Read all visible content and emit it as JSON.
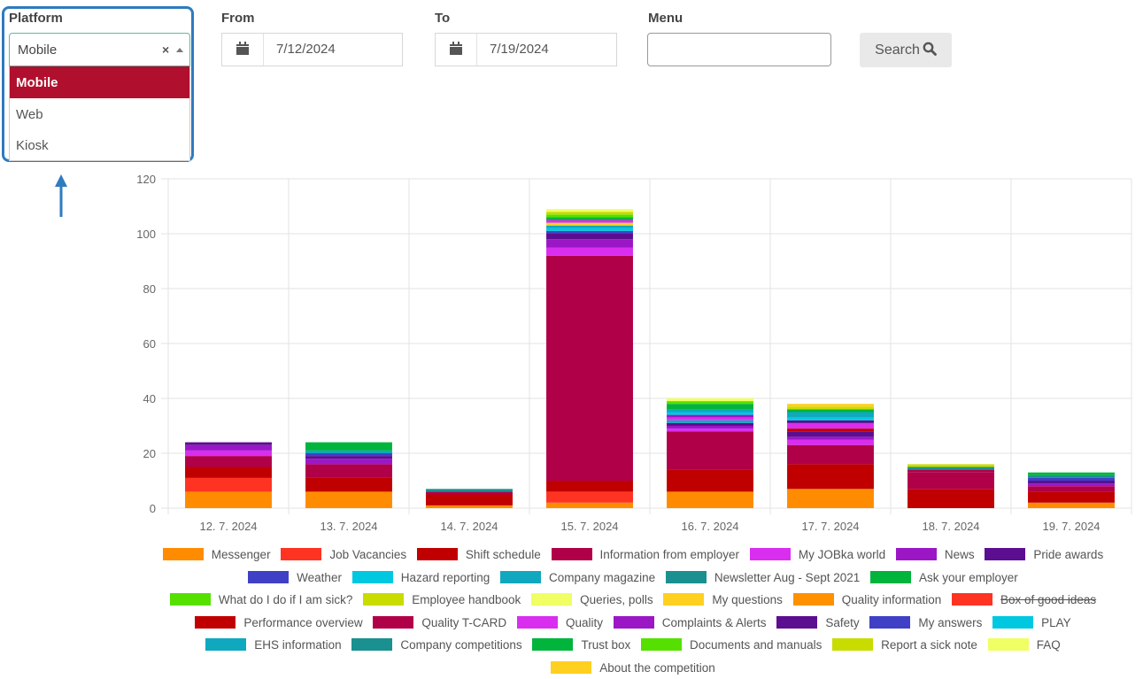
{
  "filters": {
    "platform": {
      "label": "Platform",
      "selected": "Mobile",
      "clear_glyph": "×",
      "options": [
        "Mobile",
        "Web",
        "Kiosk"
      ]
    },
    "from": {
      "label": "From",
      "value": "7/12/2024"
    },
    "to": {
      "label": "To",
      "value": "7/19/2024"
    },
    "menu": {
      "label": "Menu",
      "value": ""
    },
    "search_label": "Search"
  },
  "chart_data": {
    "type": "bar",
    "stacked": true,
    "ylim": [
      0,
      120
    ],
    "yticks": [
      0,
      20,
      40,
      60,
      80,
      100,
      120
    ],
    "grid": true,
    "categories": [
      "12. 7. 2024",
      "13. 7. 2024",
      "14. 7. 2024",
      "15. 7. 2024",
      "16. 7. 2024",
      "17. 7. 2024",
      "18. 7. 2024",
      "19. 7. 2024"
    ],
    "series": [
      {
        "name": "Messenger",
        "color": "#ff8c00",
        "values": [
          6,
          6,
          1,
          2,
          6,
          7,
          0,
          2
        ]
      },
      {
        "name": "Job Vacancies",
        "color": "#ff3322",
        "values": [
          5,
          0,
          0,
          4,
          0,
          0,
          0,
          0
        ]
      },
      {
        "name": "Shift schedule",
        "color": "#c00000",
        "values": [
          4,
          5,
          4,
          4,
          8,
          9,
          7,
          4
        ]
      },
      {
        "name": "Information from employer",
        "color": "#b00048",
        "values": [
          4,
          5,
          1,
          82,
          14,
          7,
          6,
          2
        ]
      },
      {
        "name": "My JOBka world",
        "color": "#d92ef0",
        "values": [
          2,
          0,
          0,
          3,
          1,
          2,
          0,
          0
        ]
      },
      {
        "name": "News",
        "color": "#9b17c6",
        "values": [
          2,
          2,
          0,
          3,
          1,
          1,
          0,
          1
        ]
      },
      {
        "name": "Pride awards",
        "color": "#5c0e91",
        "values": [
          1,
          1,
          0,
          2,
          1,
          2,
          0,
          1
        ]
      },
      {
        "name": "Weather",
        "color": "#4040c6",
        "values": [
          0,
          1,
          0,
          1,
          0,
          0,
          0,
          1
        ]
      },
      {
        "name": "Hazard reporting",
        "color": "#00c8e0",
        "values": [
          0,
          0,
          0,
          1,
          0,
          0,
          0,
          0
        ]
      },
      {
        "name": "Company magazine",
        "color": "#10a8be",
        "values": [
          0,
          1,
          0,
          1,
          1,
          0,
          0,
          0
        ]
      },
      {
        "name": "Newsletter Aug - Sept 2021",
        "color": "#1a9090",
        "values": [
          0,
          0,
          1,
          0,
          0,
          0,
          0,
          0
        ]
      },
      {
        "name": "Ask your employer",
        "color": "#00b43c",
        "values": [
          0,
          3,
          0,
          0,
          0,
          0,
          0,
          0
        ]
      },
      {
        "name": "What do I do if I am sick?",
        "color": "#55e000",
        "values": [
          0,
          0,
          0,
          0,
          0,
          0,
          0,
          0
        ]
      },
      {
        "name": "Employee handbook",
        "color": "#c8dc00",
        "values": [
          0,
          0,
          0,
          0,
          0,
          0,
          0,
          0
        ]
      },
      {
        "name": "Queries, polls",
        "color": "#f0ff64",
        "values": [
          0,
          0,
          0,
          0,
          0,
          0,
          0,
          0
        ]
      },
      {
        "name": "My questions",
        "color": "#ffd020",
        "values": [
          0,
          0,
          0,
          1,
          0,
          0,
          0,
          0
        ]
      },
      {
        "name": "Quality information",
        "color": "#ff9000",
        "values": [
          0,
          0,
          0,
          0,
          0,
          0,
          0,
          0
        ]
      },
      {
        "name": "Box of good ideas",
        "color": "#ff3322",
        "values": [
          0,
          0,
          0,
          0,
          0,
          0,
          0,
          0
        ],
        "hidden": true
      },
      {
        "name": "Performance overview",
        "color": "#c00000",
        "values": [
          0,
          0,
          0,
          0,
          0,
          1,
          0,
          0
        ]
      },
      {
        "name": "Quality T-CARD",
        "color": "#b00048",
        "values": [
          0,
          0,
          0,
          0,
          0,
          0,
          1,
          0
        ]
      },
      {
        "name": "Quality",
        "color": "#d92ef0",
        "values": [
          0,
          0,
          0,
          1,
          1,
          2,
          0,
          0
        ]
      },
      {
        "name": "Complaints & Alerts",
        "color": "#9b17c6",
        "values": [
          0,
          0,
          0,
          0,
          1,
          0,
          0,
          0
        ]
      },
      {
        "name": "Safety",
        "color": "#5c0e91",
        "values": [
          0,
          0,
          0,
          0,
          0,
          1,
          0,
          0
        ]
      },
      {
        "name": "My answers",
        "color": "#4040c6",
        "values": [
          0,
          0,
          0,
          0,
          0,
          0,
          0,
          0
        ]
      },
      {
        "name": "PLAY",
        "color": "#00c8e0",
        "values": [
          0,
          0,
          0,
          0,
          1,
          1,
          0,
          0
        ]
      },
      {
        "name": "EHS information",
        "color": "#10a8be",
        "values": [
          0,
          0,
          0,
          0,
          1,
          2,
          0,
          0
        ]
      },
      {
        "name": "Company competitions",
        "color": "#1a9090",
        "values": [
          0,
          0,
          0,
          0,
          0,
          0,
          1,
          1
        ]
      },
      {
        "name": "Trust box",
        "color": "#00b43c",
        "values": [
          0,
          0,
          0,
          1,
          2,
          1,
          0,
          1
        ]
      },
      {
        "name": "Documents and manuals",
        "color": "#55e000",
        "values": [
          0,
          0,
          0,
          1,
          1,
          0,
          0,
          0
        ]
      },
      {
        "name": "Report a sick note",
        "color": "#c8dc00",
        "values": [
          0,
          0,
          0,
          1,
          0,
          1,
          1,
          0
        ]
      },
      {
        "name": "FAQ",
        "color": "#f0ff64",
        "values": [
          0,
          0,
          0,
          1,
          1,
          0,
          0,
          0
        ]
      },
      {
        "name": "About the competition",
        "color": "#ffd020",
        "values": [
          0,
          0,
          0,
          0,
          0,
          1,
          0,
          0
        ]
      }
    ]
  }
}
